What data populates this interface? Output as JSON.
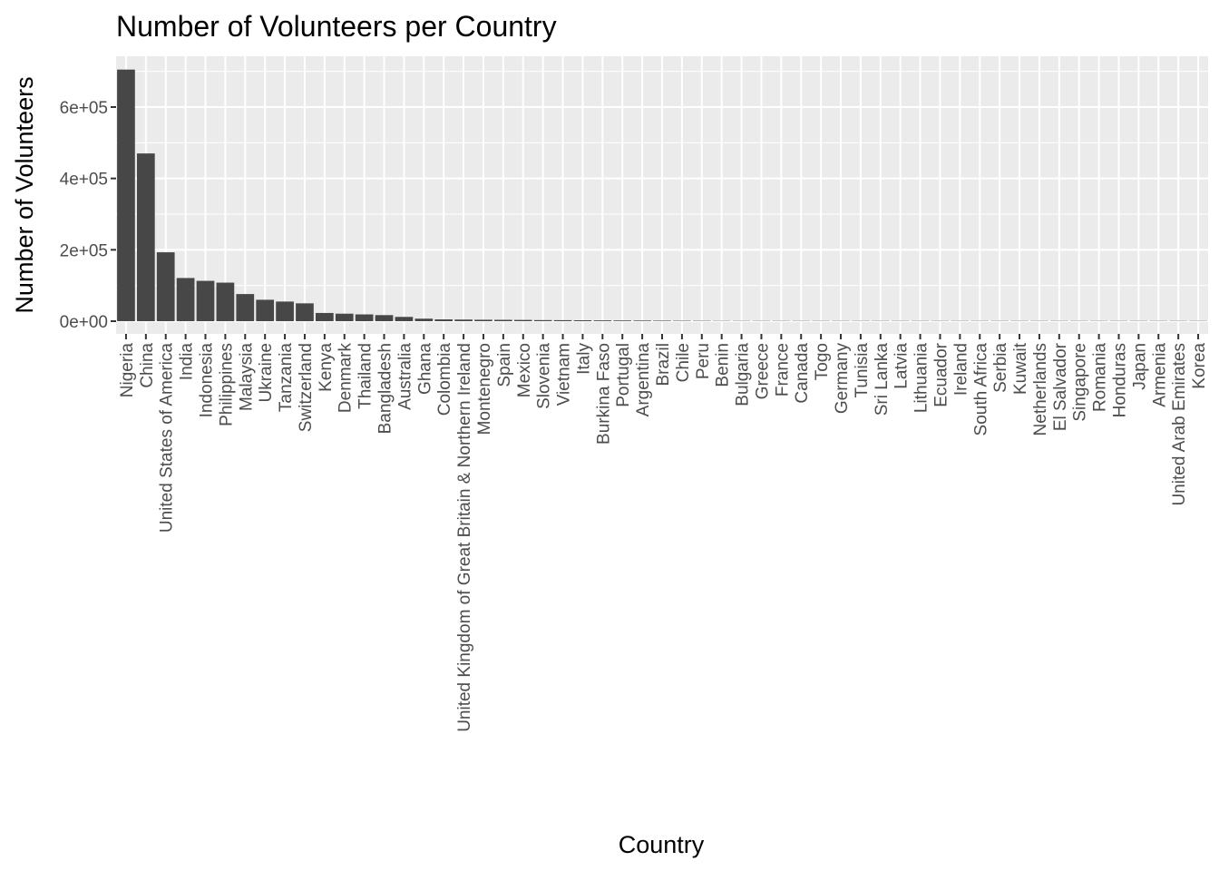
{
  "chart_data": {
    "type": "bar",
    "title": "Number of Volunteers per Country",
    "xlabel": "Country",
    "ylabel": "Number of Volunteers",
    "ylim": [
      0,
      720000
    ],
    "yticks": [
      0,
      200000,
      400000,
      600000
    ],
    "ytick_labels": [
      "0e+00",
      "2e+05",
      "4e+05",
      "6e+05"
    ],
    "grid": true,
    "bar_color": "#474747",
    "panel_color": "#ebebeb",
    "categories": [
      "Nigeria",
      "China",
      "United States of America",
      "India",
      "Indonesia",
      "Philippines",
      "Malaysia",
      "Ukraine",
      "Tanzania",
      "Switzerland",
      "Kenya",
      "Denmark",
      "Thailand",
      "Bangladesh",
      "Australia",
      "Ghana",
      "Colombia",
      "United Kingdom of Great Britain & Northern Ireland",
      "Montenegro",
      "Spain",
      "Mexico",
      "Slovenia",
      "Vietnam",
      "Italy",
      "Burkina Faso",
      "Portugal",
      "Argentina",
      "Brazil",
      "Chile",
      "Peru",
      "Benin",
      "Bulgaria",
      "Greece",
      "France",
      "Canada",
      "Togo",
      "Germany",
      "Tunisia",
      "Sri Lanka",
      "Latvia",
      "Lithuania",
      "Ecuador",
      "Ireland",
      "South Africa",
      "Serbia",
      "Kuwait",
      "Netherlands",
      "El Salvador",
      "Singapore",
      "Romania",
      "Honduras",
      "Japan",
      "Armenia",
      "United Arab Emirates",
      "Korea"
    ],
    "values": [
      705000,
      470000,
      193000,
      121000,
      113000,
      108000,
      76000,
      60000,
      55000,
      50000,
      23000,
      21000,
      19000,
      17000,
      12000,
      7000,
      5000,
      4500,
      4000,
      3800,
      3500,
      3000,
      2800,
      2500,
      2200,
      2000,
      1800,
      1500,
      1200,
      1000,
      800,
      700,
      600,
      500,
      450,
      400,
      350,
      300,
      250,
      200,
      180,
      160,
      140,
      120,
      100,
      90,
      80,
      70,
      60,
      50,
      40,
      30,
      20,
      10,
      5
    ]
  }
}
